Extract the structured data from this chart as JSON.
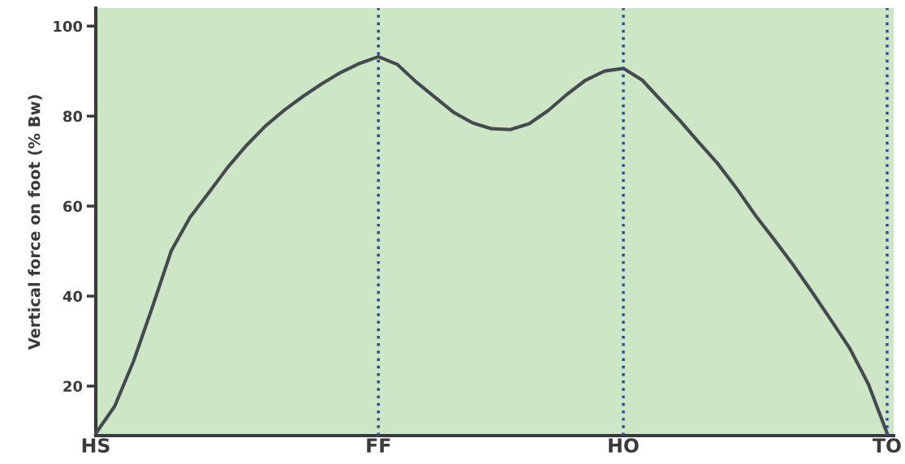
{
  "chart_data": {
    "type": "line",
    "ylabel": "Vertical force on foot (% Bw)",
    "categories": [
      "HS",
      null,
      null,
      null,
      null,
      null,
      null,
      null,
      null,
      null,
      null,
      null,
      null,
      null,
      null,
      "FF",
      null,
      null,
      null,
      null,
      null,
      null,
      null,
      null,
      null,
      null,
      null,
      null,
      "HO",
      null,
      null,
      null,
      null,
      null,
      null,
      null,
      null,
      null,
      null,
      null,
      null,
      null,
      "TO"
    ],
    "series": [
      {
        "color": "#464a50",
        "values": [
          9.5,
          15.5,
          25.5,
          37.5,
          50,
          57.5,
          63,
          68.6,
          73.5,
          77.8,
          81.3,
          84.4,
          87.2,
          89.7,
          91.7,
          93.2,
          91.5,
          87.6,
          84.2,
          80.8,
          78.5,
          77.2,
          77.0,
          78.3,
          81.2,
          84.8,
          88.0,
          90.0,
          90.6,
          88.0,
          83.5,
          79.0,
          74.2,
          69.5,
          64.0,
          58.0,
          52.6,
          47.0,
          41.0,
          34.8,
          28.5,
          20.5,
          9.5
        ]
      }
    ],
    "ylim": [
      9,
      104
    ],
    "yticks": [
      20,
      40,
      60,
      80,
      100
    ],
    "ref_lines": [
      {
        "axis": "x",
        "value": "FF",
        "color": "#2e4a9a",
        "line_style": "dotted"
      },
      {
        "axis": "x",
        "value": "HO",
        "color": "#2e4a9a",
        "line_style": "dotted"
      },
      {
        "axis": "x",
        "value": "TO",
        "color": "#2e4a9a",
        "line_style": "dotted"
      }
    ],
    "grid": false,
    "legend": false,
    "marker": "none",
    "line_style": "solid"
  }
}
